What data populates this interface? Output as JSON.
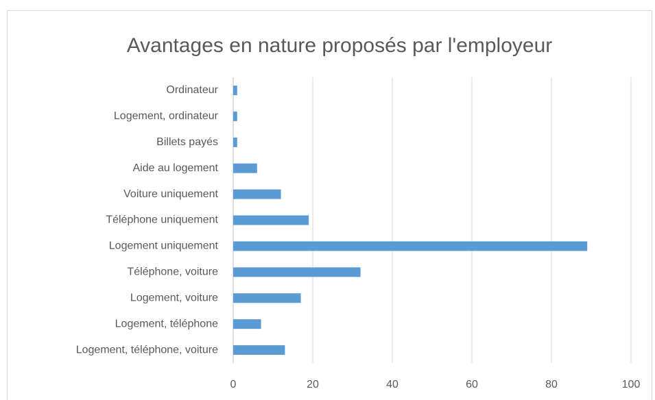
{
  "chart_data": {
    "type": "bar",
    "orientation": "horizontal",
    "title": "Avantages en nature proposés par l'employeur",
    "categories": [
      "Logement, téléphone, voiture",
      "Logement, téléphone",
      "Logement, voiture",
      "Téléphone, voiture",
      "Logement uniquement",
      "Téléphone uniquement",
      "Voiture uniquement",
      "Aide au logement",
      "Billets payés",
      "Logement, ordinateur",
      "Ordinateur"
    ],
    "values": [
      13,
      7,
      17,
      32,
      89,
      19,
      12,
      6,
      1,
      1,
      1
    ],
    "color": "#5b9bd5",
    "xlim": [
      0,
      100
    ],
    "xticks": [
      0,
      20,
      40,
      60,
      80,
      100
    ],
    "grid": true
  }
}
